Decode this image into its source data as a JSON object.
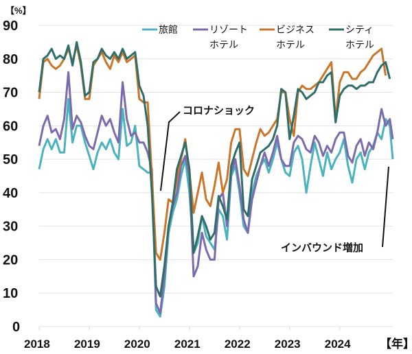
{
  "chart_data": {
    "type": "line",
    "title": "",
    "ylabel": "【%】",
    "xlabel": "【年】",
    "ylim": [
      0,
      90
    ],
    "yticks": [
      "0",
      "10",
      "20",
      "30",
      "40",
      "50",
      "60",
      "70",
      "80",
      "90"
    ],
    "xticks": [
      "2018",
      "2019",
      "2020",
      "2021",
      "2022",
      "2023",
      "2024"
    ],
    "grid": true,
    "legend_position": "top",
    "x_start": "2018-01",
    "frequency": "monthly",
    "series": [
      {
        "name": "旅館",
        "color": "#4bb3bd",
        "values": [
          47,
          53,
          56,
          53,
          56,
          52,
          52,
          68,
          55,
          60,
          60,
          55,
          51,
          47,
          52,
          55,
          53,
          56,
          52,
          50,
          65,
          54,
          55,
          60,
          48,
          47,
          46,
          46,
          5,
          3,
          12,
          28,
          34,
          38,
          45,
          50,
          40,
          22,
          25,
          33,
          27,
          25,
          23,
          35,
          33,
          26,
          45,
          48,
          40,
          30,
          28,
          40,
          45,
          48,
          50,
          46,
          50,
          55,
          50,
          46,
          45,
          52,
          54,
          50,
          40,
          48,
          55,
          50,
          45,
          52,
          47,
          50,
          52,
          56,
          48,
          43,
          50,
          52,
          47,
          52,
          54,
          58,
          56,
          62,
          60,
          50
        ]
      },
      {
        "name": "リゾートホテル",
        "color": "#7b6aad",
        "values": [
          54,
          60,
          63,
          58,
          59,
          56,
          62,
          76,
          59,
          63,
          61,
          57,
          54,
          53,
          58,
          63,
          60,
          62,
          58,
          55,
          73,
          62,
          57,
          58,
          55,
          55,
          52,
          47,
          7,
          4,
          15,
          30,
          36,
          40,
          48,
          51,
          45,
          15,
          18,
          28,
          23,
          20,
          20,
          38,
          40,
          30,
          46,
          50,
          42,
          32,
          28,
          38,
          43,
          48,
          52,
          48,
          52,
          57,
          50,
          48,
          48,
          55,
          57,
          56,
          53,
          52,
          57,
          55,
          51,
          54,
          52,
          56,
          58,
          58,
          51,
          49,
          54,
          56,
          51,
          55,
          53,
          58,
          65,
          60,
          62,
          56
        ]
      },
      {
        "name": "ビジネスホテル",
        "color": "#c9762a",
        "values": [
          68,
          79,
          80,
          78,
          77,
          78,
          80,
          83,
          79,
          84,
          78,
          68,
          68,
          78,
          80,
          82,
          79,
          77,
          81,
          79,
          82,
          79,
          80,
          81,
          68,
          67,
          67,
          45,
          22,
          20,
          28,
          38,
          37,
          44,
          50,
          56,
          46,
          34,
          40,
          46,
          38,
          36,
          42,
          49,
          40,
          44,
          55,
          59,
          59,
          47,
          45,
          50,
          55,
          59,
          57,
          58,
          60,
          62,
          70,
          70,
          62,
          57,
          70,
          72,
          71,
          71,
          72,
          73,
          75,
          77,
          79,
          62,
          73,
          76,
          76,
          74,
          74,
          76,
          77,
          79,
          81,
          82,
          83,
          75
        ]
      },
      {
        "name": "シティホテル",
        "color": "#2e6d6a",
        "values": [
          70,
          80,
          81,
          83,
          80,
          81,
          80,
          84,
          78,
          85,
          79,
          69,
          70,
          79,
          80,
          83,
          81,
          80,
          82,
          80,
          83,
          80,
          81,
          82,
          72,
          69,
          60,
          40,
          12,
          9,
          18,
          30,
          37,
          47,
          51,
          55,
          47,
          22,
          27,
          33,
          30,
          26,
          28,
          39,
          36,
          32,
          48,
          52,
          55,
          35,
          33,
          44,
          48,
          52,
          53,
          54,
          56,
          60,
          71,
          70,
          56,
          63,
          71,
          70,
          68,
          69,
          70,
          73,
          73,
          75,
          76,
          61,
          69,
          71,
          72,
          72,
          71,
          72,
          72,
          73,
          73,
          76,
          78,
          79,
          74
        ]
      }
    ],
    "annotations": [
      {
        "text": "コロナショック",
        "target": "2020-05"
      },
      {
        "text": "インバウンド増加",
        "target": "2024-12"
      }
    ]
  },
  "legend": [
    {
      "line1": "旅館",
      "line2": ""
    },
    {
      "line1": "リゾート",
      "line2": "ホテル"
    },
    {
      "line1": "ビジネス",
      "line2": "ホテル"
    },
    {
      "line1": "シティ",
      "line2": "ホテル"
    }
  ]
}
